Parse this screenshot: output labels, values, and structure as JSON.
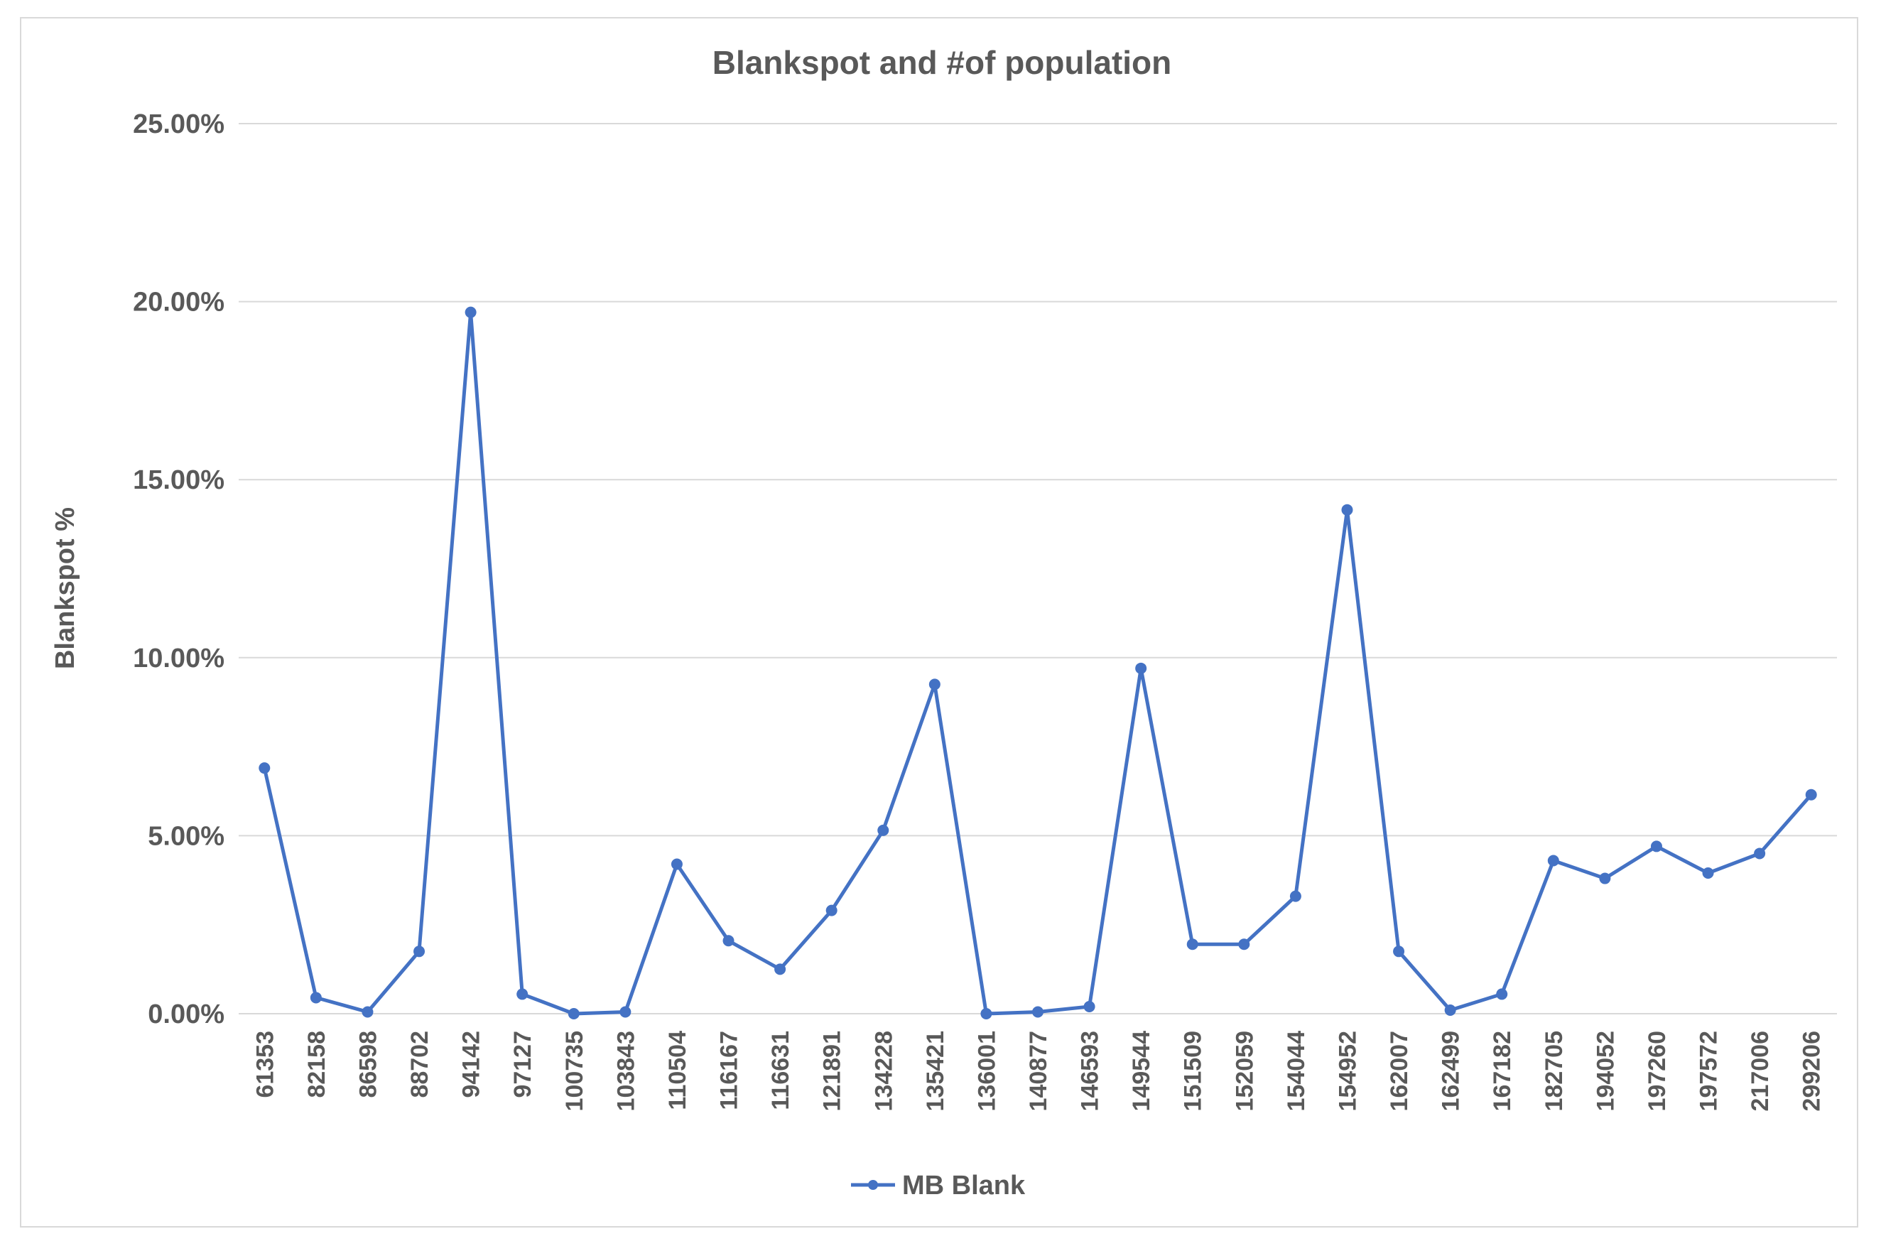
{
  "chart_data": {
    "type": "line",
    "title": "Blankspot and #of population",
    "xlabel": "",
    "ylabel": "Blankspot %",
    "ylim": [
      0,
      0.25
    ],
    "yticks": [
      "0.00%",
      "5.00%",
      "10.00%",
      "15.00%",
      "20.00%",
      "25.00%"
    ],
    "ytick_values": [
      0,
      0.05,
      0.1,
      0.15,
      0.2,
      0.25
    ],
    "grid": true,
    "legend_position": "bottom",
    "series_color": "#4472c4",
    "categories": [
      "61353",
      "82158",
      "86598",
      "88702",
      "94142",
      "97127",
      "100735",
      "103843",
      "110504",
      "116167",
      "116631",
      "121891",
      "134228",
      "135421",
      "136001",
      "140877",
      "146593",
      "149544",
      "151509",
      "152059",
      "154044",
      "154952",
      "162007",
      "162499",
      "167182",
      "182705",
      "194052",
      "197260",
      "197572",
      "217006",
      "299206"
    ],
    "series": [
      {
        "name": "MB Blank",
        "values": [
          0.069,
          0.0045,
          0.0005,
          0.0175,
          0.197,
          0.0055,
          0.0,
          0.0005,
          0.042,
          0.0205,
          0.0125,
          0.029,
          0.0515,
          0.0925,
          0.0,
          0.0005,
          0.002,
          0.097,
          0.0195,
          0.0195,
          0.033,
          0.1415,
          0.0175,
          0.001,
          0.0055,
          0.043,
          0.038,
          0.047,
          0.0395,
          0.045,
          0.0615
        ]
      }
    ]
  }
}
